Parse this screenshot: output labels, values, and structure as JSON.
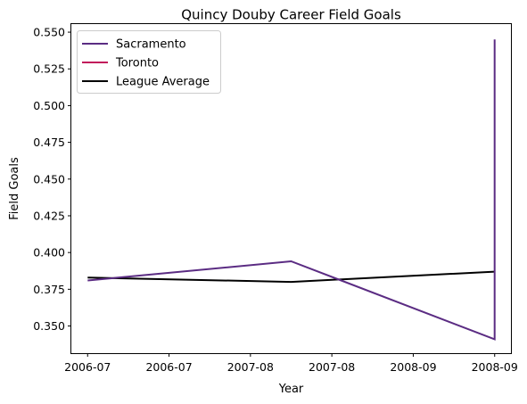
{
  "chart_data": {
    "type": "line",
    "title": "Quincy Douby Career Field Goals",
    "xlabel": "Year",
    "ylabel": "Field Goals",
    "xlim": [
      -0.08,
      2.08
    ],
    "ylim": [
      0.3315,
      0.5555
    ],
    "x_ticks": [
      {
        "value": 0.0,
        "label": "2006-07"
      },
      {
        "value": 0.4,
        "label": "2006-07"
      },
      {
        "value": 0.8,
        "label": "2007-08"
      },
      {
        "value": 1.2,
        "label": "2007-08"
      },
      {
        "value": 1.6,
        "label": "2008-09"
      },
      {
        "value": 2.0,
        "label": "2008-09"
      }
    ],
    "y_ticks": [
      0.35,
      0.375,
      0.4,
      0.425,
      0.45,
      0.475,
      0.5,
      0.525,
      0.55
    ],
    "y_tick_labels": [
      "0.350",
      "0.375",
      "0.400",
      "0.425",
      "0.450",
      "0.475",
      "0.500",
      "0.525",
      "0.550"
    ],
    "legend_position": "upper-left",
    "series": [
      {
        "name": "League Average",
        "color": "#000000",
        "x": [
          0,
          1,
          2
        ],
        "y": [
          0.383,
          0.38,
          0.387
        ]
      },
      {
        "name": "Sacramento",
        "color": "#5b2c83",
        "x": [
          0,
          1,
          2,
          2
        ],
        "y": [
          0.381,
          0.394,
          0.341,
          0.545
        ]
      },
      {
        "name": "Toronto",
        "color": "#c2185b",
        "x": [],
        "y": []
      }
    ],
    "legend_order": [
      "Sacramento",
      "Toronto",
      "League Average"
    ]
  }
}
